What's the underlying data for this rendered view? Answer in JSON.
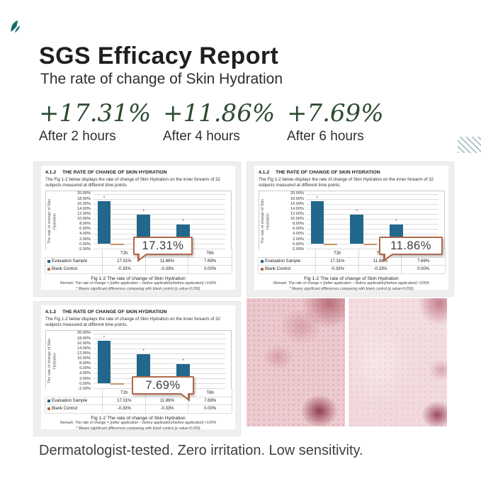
{
  "page": {
    "title": "SGS Efficacy Report",
    "subtitle": "The rate of change of Skin Hydration",
    "footer": "Dermatologist-tested. Zero irritation. Low sensitivity."
  },
  "icons": {
    "brand": "leaf-mark",
    "corner_decoration": "diagonal-stripes"
  },
  "colors": {
    "accent_green": "#2c4a31",
    "bar_teal": "#21688c",
    "bar_control_tan": "#c99162",
    "callout_border": "#b06a4a",
    "panel_background": "#efefef",
    "skin_pink_light": "#f3dee1",
    "skin_pink_deep": "#ebc8cd"
  },
  "stats": [
    {
      "value": "+17.31%",
      "label": "After 2 hours"
    },
    {
      "value": "+11.86%",
      "label": "After 4 hours"
    },
    {
      "value": "+7.69%",
      "label": "After 6 hours"
    }
  ],
  "panels": [
    {
      "section": "4.1.2",
      "heading": "THE RATE OF CHANGE OF SKIN HYDRATION",
      "body": "The Fig 1-2 below displays the rate of change of Skin Hydration on the inner forearm of 32 subjects measured at different time points.",
      "callout": "17.31%",
      "caption": "Fig 1-2 The rate of change of Skin Hydration",
      "remark": "Remark: The rate of change = [(after application – before application)/before application] ×100%",
      "note": "* Means significant differences comparing with blank control (p value<0.050)"
    },
    {
      "section": "4.1.2",
      "heading": "THE RATE OF CHANGE OF SKIN HYDRATION",
      "body": "The Fig 1-2 below displays the rate of change of Skin Hydration on the inner forearm of 32 subjects measured at different time points.",
      "callout": "11.86%",
      "caption": "Fig 1-2 The rate of change of Skin Hydration",
      "remark": "Remark: The rate of change = [(after application – before application)/before application] ×100%",
      "note": "* Means significant differences comparing with blank control (p value<0.050)"
    },
    {
      "section": "4.1.2",
      "heading": "THE RATE OF CHANGE OF SKIN HYDRATION",
      "body": "The Fig 1-2 below displays the rate of change of Skin Hydration on the inner forearm of 32 subjects measured at different time points.",
      "callout": "7.69%",
      "caption": "Fig 1-2 The rate of change of Skin Hydration",
      "remark": "Remark: The rate of change = [(after application – before application)/before application] ×100%",
      "note": "* Means significant differences comparing with blank control (p value<0.050)"
    }
  ],
  "chart_data": {
    "type": "bar",
    "title": "Fig 1-2 The rate of change of Skin Hydration",
    "categories": [
      "T2h",
      "T4h",
      "T6h"
    ],
    "series": [
      {
        "name": "Evaluation Sample",
        "values": [
          17.31,
          11.86,
          7.69
        ],
        "display": [
          "17.31%",
          "11.86%",
          "7.69%"
        ],
        "color": "#21688c"
      },
      {
        "name": "Blank Control",
        "values": [
          -0.33,
          -0.33,
          0.0
        ],
        "display": [
          "-0.33%",
          "-0.33%",
          "0.00%"
        ],
        "color": "#c99162"
      }
    ],
    "xlabel": "",
    "ylabel": "The rate of change of Skin Hydration",
    "ylim": [
      -2,
      20
    ],
    "yticks": [
      "20.00%",
      "18.00%",
      "16.00%",
      "14.00%",
      "12.00%",
      "10.00%",
      "8.00%",
      "6.00%",
      "4.00%",
      "2.00%",
      "0.00%",
      "-2.00%"
    ],
    "grid": true,
    "significance_marker": "*",
    "legend_position": "table rows, left column"
  }
}
